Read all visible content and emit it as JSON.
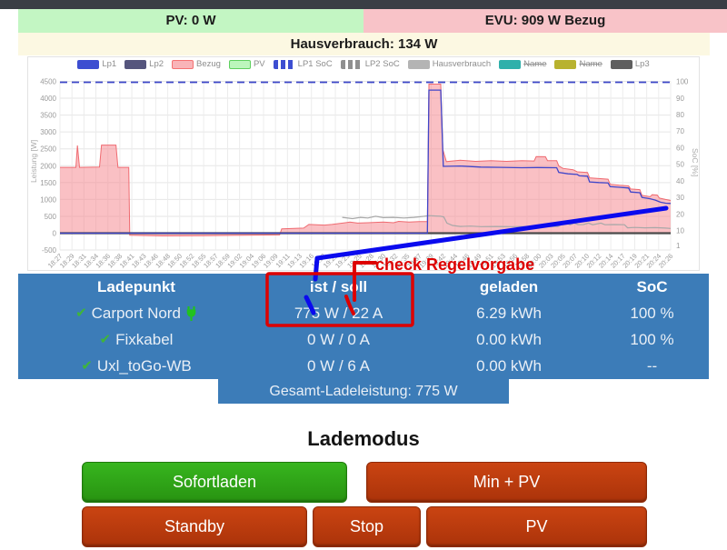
{
  "topbar": {
    "pv": "PV: 0 W",
    "evu": "EVU: 909 W Bezug",
    "haus": "Hausverbrauch: 134 W"
  },
  "colors": {
    "pv_bg": "#c3f6c3",
    "evu_bg": "#f8c3c8",
    "haus_bg": "#fcf8e2",
    "table_bg": "#3c7cb8",
    "annotation_red": "#dd0000",
    "annotation_blue": "#0a0aee",
    "check_green": "#3fb53a",
    "plug_green": "#21c21e"
  },
  "icons": {
    "check": "✔"
  },
  "chart_data": {
    "type": "line",
    "ylabel_left": "Leistung [W]",
    "ylabel_right": "SoC [%]",
    "ylim_left": [
      -500,
      4500
    ],
    "ylim_right": [
      0,
      100
    ],
    "yticks_left": [
      4500,
      4000,
      3500,
      3000,
      2500,
      2000,
      1500,
      1000,
      500,
      0,
      -500
    ],
    "yticks_right": [
      100,
      90,
      80,
      70,
      60,
      50,
      40,
      30,
      20,
      10,
      1
    ],
    "grid": true,
    "legend_position": "top",
    "x_labels": [
      "18:27",
      "18:29",
      "18:31",
      "18:34",
      "18:36",
      "18:38",
      "18:41",
      "18:43",
      "18:46",
      "18:48",
      "18:50",
      "18:52",
      "18:55",
      "18:57",
      "18:59",
      "19:02",
      "19:04",
      "19:06",
      "19:09",
      "19:11",
      "19:13",
      "19:16",
      "19:18",
      "19:21",
      "19:23",
      "19:25",
      "19:28",
      "19:30",
      "19:32",
      "19:35",
      "19:37",
      "19:39",
      "19:42",
      "19:44",
      "19:46",
      "19:49",
      "19:51",
      "19:53",
      "19:56",
      "19:58",
      "20:00",
      "20:03",
      "20:05",
      "20:07",
      "20:10",
      "20:12",
      "20:14",
      "20:17",
      "20:19",
      "20:21",
      "20:24",
      "20:26"
    ],
    "legend": [
      {
        "label": "Lp1",
        "color": "#3d4ed1",
        "style": "solid",
        "struck": false
      },
      {
        "label": "Lp2",
        "color": "#55557d",
        "style": "solid",
        "struck": false
      },
      {
        "label": "Bezug",
        "color": "#f9b4b8",
        "border": "#f47272",
        "style": "outlined",
        "struck": false
      },
      {
        "label": "PV",
        "color": "#bcf6bc",
        "border": "#5ecf5e",
        "style": "outlined",
        "struck": false
      },
      {
        "label": "LP1 SoC",
        "color": "#3d4ed1",
        "style": "dashed",
        "struck": false
      },
      {
        "label": "LP2 SoC",
        "color": "#8f8f8f",
        "style": "dashed",
        "struck": false
      },
      {
        "label": "Hausverbrauch",
        "color": "#b4b4b4",
        "style": "solid",
        "struck": false
      },
      {
        "label": "Name",
        "color": "#2fb0ab",
        "style": "solid",
        "struck": true
      },
      {
        "label": "Name",
        "color": "#b8b22f",
        "style": "solid",
        "struck": true
      },
      {
        "label": "Lp3",
        "color": "#5f5f5f",
        "style": "solid",
        "struck": false
      }
    ],
    "series": [
      {
        "name": "Bezug",
        "kind": "area",
        "color": "#ef6a70",
        "fill": "rgba(245,130,138,0.5)",
        "width": 1,
        "points": [
          [
            0,
            1950
          ],
          [
            3.1,
            1950
          ],
          [
            3.4,
            2600
          ],
          [
            3.8,
            1950
          ],
          [
            7.7,
            1960
          ],
          [
            8.1,
            2610
          ],
          [
            10.9,
            2610
          ],
          [
            11.3,
            1950
          ],
          [
            13.4,
            1950
          ],
          [
            13.6,
            -60
          ],
          [
            20,
            -80
          ],
          [
            28,
            -75
          ],
          [
            36,
            -60
          ],
          [
            42.8,
            -50
          ],
          [
            43.2,
            130
          ],
          [
            47.5,
            150
          ],
          [
            48.5,
            260
          ],
          [
            51.5,
            240
          ],
          [
            53,
            260
          ],
          [
            56.5,
            330
          ],
          [
            58,
            300
          ],
          [
            60,
            310
          ],
          [
            63,
            330
          ],
          [
            65,
            310
          ],
          [
            66,
            350
          ],
          [
            68,
            330
          ],
          [
            70,
            345
          ],
          [
            71.6,
            345
          ],
          [
            71.9,
            4420
          ],
          [
            74.2,
            4420
          ],
          [
            74.6,
            2480
          ],
          [
            75.3,
            2120
          ],
          [
            78,
            2160
          ],
          [
            81,
            2130
          ],
          [
            84,
            2150
          ],
          [
            87,
            2130
          ],
          [
            90,
            2150
          ],
          [
            92.4,
            2140
          ],
          [
            92.8,
            2270
          ],
          [
            94.6,
            2265
          ],
          [
            95,
            2150
          ],
          [
            96.8,
            2150
          ],
          [
            97.2,
            1990
          ],
          [
            98,
            1920
          ],
          [
            100,
            1880
          ],
          [
            100.8,
            1820
          ],
          [
            102.8,
            1800
          ],
          [
            103.2,
            1640
          ],
          [
            105,
            1620
          ],
          [
            106.8,
            1600
          ],
          [
            107.2,
            1450
          ],
          [
            109,
            1420
          ],
          [
            110.8,
            1400
          ],
          [
            111.2,
            1310
          ],
          [
            113,
            1290
          ],
          [
            113.4,
            1120
          ],
          [
            115,
            1080
          ],
          [
            115.4,
            1140
          ],
          [
            116.4,
            1130
          ],
          [
            116.8,
            1040
          ],
          [
            118,
            1000
          ],
          [
            119,
            970
          ]
        ]
      },
      {
        "name": "zero-axis",
        "kind": "line",
        "color": "#4a4a4a",
        "width": 2.2,
        "points": [
          [
            0,
            0
          ],
          [
            119,
            0
          ]
        ]
      },
      {
        "name": "Hausverbrauch",
        "kind": "line",
        "color": "#a8a8a8",
        "width": 1.2,
        "points": [
          [
            55,
            470
          ],
          [
            57,
            430
          ],
          [
            58.5,
            470
          ],
          [
            60,
            450
          ],
          [
            61.5,
            500
          ],
          [
            63,
            460
          ],
          [
            65,
            470
          ],
          [
            67,
            450
          ],
          [
            69,
            470
          ],
          [
            71,
            500
          ],
          [
            71.9,
            520
          ],
          [
            74.2,
            500
          ],
          [
            74.8,
            480
          ],
          [
            75.4,
            300
          ],
          [
            76.5,
            230
          ],
          [
            78,
            200
          ],
          [
            80,
            210
          ],
          [
            82,
            195
          ],
          [
            85,
            200
          ],
          [
            88,
            195
          ],
          [
            91,
            200
          ],
          [
            94,
            195
          ],
          [
            97,
            200
          ],
          [
            97.8,
            255
          ],
          [
            98.6,
            300
          ],
          [
            99.4,
            250
          ],
          [
            100.2,
            300
          ],
          [
            101,
            250
          ],
          [
            102,
            255
          ],
          [
            103,
            300
          ],
          [
            103.8,
            250
          ],
          [
            105.4,
            300
          ],
          [
            106.2,
            250
          ],
          [
            108,
            255
          ],
          [
            110,
            250
          ],
          [
            110.6,
            160
          ],
          [
            112,
            170
          ],
          [
            114,
            160
          ],
          [
            116,
            165
          ],
          [
            118,
            150
          ],
          [
            119,
            140
          ]
        ]
      },
      {
        "name": "Lp1",
        "kind": "line",
        "color": "#4046c9",
        "width": 1.3,
        "points": [
          [
            0,
            0
          ],
          [
            71.6,
            0
          ],
          [
            71.9,
            4240
          ],
          [
            74.2,
            4240
          ],
          [
            74.7,
            1980
          ],
          [
            78,
            1990
          ],
          [
            82,
            1960
          ],
          [
            86,
            1950
          ],
          [
            90,
            1940
          ],
          [
            93,
            1945
          ],
          [
            96.8,
            1940
          ],
          [
            97.2,
            1800
          ],
          [
            99,
            1760
          ],
          [
            100.8,
            1740
          ],
          [
            101.2,
            1700
          ],
          [
            102.8,
            1690
          ],
          [
            103.2,
            1520
          ],
          [
            105,
            1500
          ],
          [
            106.8,
            1490
          ],
          [
            107.2,
            1380
          ],
          [
            109,
            1360
          ],
          [
            110.8,
            1340
          ],
          [
            111.2,
            1220
          ],
          [
            113,
            1200
          ],
          [
            113.4,
            1060
          ],
          [
            115,
            1020
          ],
          [
            116,
            980
          ],
          [
            117,
            920
          ],
          [
            118,
            890
          ],
          [
            119,
            880
          ]
        ]
      },
      {
        "name": "LP1 SoC",
        "kind": "dashed",
        "axis": "right",
        "color": "#3b45c8",
        "width": 1.8,
        "points": [
          [
            0,
            99.5
          ],
          [
            119,
            99.5
          ]
        ]
      }
    ]
  },
  "annotation": {
    "label": "check Regelvorgabe"
  },
  "table": {
    "headers": [
      "Ladepunkt",
      "ist / soll",
      "geladen",
      "SoC"
    ],
    "rows": [
      {
        "name": "Carport Nord",
        "ist_soll": "775 W / 22 A",
        "geladen": "6.29 kWh",
        "soc": "100 %"
      },
      {
        "name": "Fixkabel",
        "ist_soll": "0 W / 0 A",
        "geladen": "0.00 kWh",
        "soc": "100 %"
      },
      {
        "name": "Uxl_toGo-WB",
        "ist_soll": "0 W / 6 A",
        "geladen": "0.00 kWh",
        "soc": "--"
      }
    ],
    "footer": "Gesamt-Ladeleistung: 775 W"
  },
  "lademodus": {
    "title": "Lademodus",
    "buttons": [
      {
        "label": "Sofortladen",
        "variant": "green"
      },
      {
        "label": "Min + PV",
        "variant": "red"
      },
      {
        "label": "Standby",
        "variant": "red"
      },
      {
        "label": "Stop",
        "variant": "red"
      },
      {
        "label": "PV",
        "variant": "red"
      }
    ]
  }
}
